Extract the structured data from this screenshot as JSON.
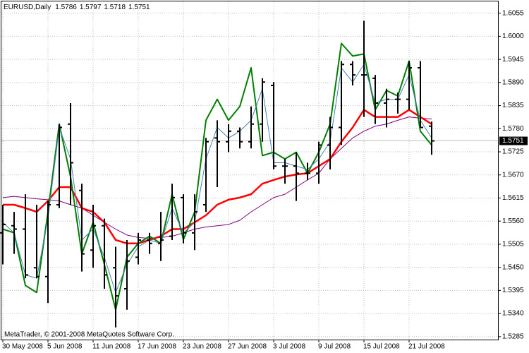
{
  "chart_data": {
    "type": "ohlc",
    "title": "EURUSD,Daily",
    "footer": "MetaTrader, © 2001-2008 MetaQuotes Software Corp.",
    "categories": [
      "30 May 2008",
      null,
      null,
      null,
      "5 Jun 2008",
      null,
      null,
      null,
      "11 Jun 2008",
      null,
      null,
      null,
      "17 Jun 2008",
      null,
      null,
      null,
      "23 Jun 2008",
      null,
      null,
      null,
      "27 Jun 2008",
      null,
      null,
      null,
      "3 Jul 2008",
      null,
      null,
      null,
      "9 Jul 2008",
      null,
      null,
      null,
      "15 Jul 2008",
      null,
      null,
      null,
      "21 Jul 2008",
      null,
      null
    ],
    "open": [
      1.5532,
      1.5549,
      1.5541,
      1.5449,
      1.5428,
      1.5599,
      1.5791,
      1.5633,
      1.5491,
      1.5549,
      1.5449,
      1.5399,
      1.5474,
      1.5515,
      1.5507,
      1.5524,
      1.5616,
      1.5532,
      1.5599,
      1.5758,
      1.5749,
      1.5774,
      1.5749,
      1.5791,
      1.5883,
      1.5691,
      1.5691,
      1.5674,
      1.5674,
      1.5741,
      1.5783,
      1.5933,
      1.5908,
      1.59,
      1.5841,
      1.585,
      1.585,
      1.5925,
      1.5786
    ],
    "high": [
      1.5599,
      1.5582,
      1.5624,
      1.5599,
      1.5608,
      1.5791,
      1.5841,
      1.5649,
      1.5599,
      1.5566,
      1.5499,
      1.5515,
      1.5532,
      1.5532,
      1.5582,
      1.5649,
      1.5624,
      1.5624,
      1.5758,
      1.58,
      1.5791,
      1.5783,
      1.5833,
      1.59,
      1.5891,
      1.5708,
      1.5724,
      1.5699,
      1.5749,
      1.5808,
      1.5941,
      1.5941,
      1.6037,
      1.5908,
      1.5875,
      1.5866,
      1.5941,
      1.5941,
      1.5797
    ],
    "low": [
      1.5457,
      1.5482,
      1.5424,
      1.5424,
      1.5365,
      1.5591,
      1.5599,
      1.544,
      1.5449,
      1.5399,
      1.5307,
      1.5349,
      1.5457,
      1.5482,
      1.5465,
      1.5515,
      1.5507,
      1.5491,
      1.5582,
      1.5641,
      1.5724,
      1.5733,
      1.5733,
      1.5749,
      1.5683,
      1.5649,
      1.5608,
      1.5658,
      1.5649,
      1.5683,
      1.5741,
      1.5883,
      1.5808,
      1.5791,
      1.5783,
      1.5816,
      1.5825,
      1.5783,
      1.5718
    ],
    "close": [
      1.5552,
      1.5541,
      1.5432,
      1.5428,
      1.5599,
      1.5783,
      1.5699,
      1.5482,
      1.5549,
      1.5432,
      1.5382,
      1.5465,
      1.5515,
      1.5507,
      1.5515,
      1.5616,
      1.5532,
      1.5582,
      1.5749,
      1.5749,
      1.5774,
      1.5749,
      1.5791,
      1.5891,
      1.5691,
      1.5691,
      1.5674,
      1.5674,
      1.5741,
      1.5783,
      1.5933,
      1.5908,
      1.5908,
      1.5841,
      1.585,
      1.585,
      1.5925,
      1.5783,
      1.5751
    ],
    "color": "#000000",
    "lines": [
      {
        "color": "#800080",
        "width": 1,
        "values": [
          1.5616,
          1.5619,
          1.5616,
          1.5613,
          1.5611,
          1.5608,
          1.5599,
          1.5591,
          1.5574,
          1.5557,
          1.5541,
          1.5527,
          1.5521,
          1.5519,
          1.5521,
          1.5524,
          1.5532,
          1.5541,
          1.5546,
          1.5549,
          1.5552,
          1.5562,
          1.5582,
          1.5599,
          1.5616,
          1.5624,
          1.5641,
          1.5658,
          1.5674,
          1.5708,
          1.5733,
          1.5758,
          1.5774,
          1.5786,
          1.5791,
          1.58,
          1.5808,
          1.5805,
          1.5803
        ]
      },
      {
        "color": "#ff0000",
        "width": 2.5,
        "values": [
          1.5599,
          1.5599,
          1.5591,
          1.5582,
          1.5608,
          1.5641,
          1.5641,
          1.5591,
          1.5582,
          1.5557,
          1.5515,
          1.5507,
          1.5507,
          1.5515,
          1.5524,
          1.5541,
          1.5541,
          1.5557,
          1.5574,
          1.5599,
          1.5611,
          1.5616,
          1.5624,
          1.5649,
          1.5658,
          1.5666,
          1.5671,
          1.5674,
          1.5691,
          1.5708,
          1.5749,
          1.5783,
          1.5825,
          1.5808,
          1.5808,
          1.5808,
          1.5825,
          1.5808,
          1.5791
        ]
      },
      {
        "color": "#008000",
        "width": 2,
        "values": [
          1.5541,
          1.5532,
          1.5407,
          1.539,
          1.5582,
          1.5791,
          1.5666,
          1.5482,
          1.5557,
          1.5457,
          1.5349,
          1.5474,
          1.5507,
          1.5524,
          1.5507,
          1.5624,
          1.5516,
          1.5582,
          1.58,
          1.585,
          1.58,
          1.5833,
          1.5925,
          1.5716,
          1.5724,
          1.5708,
          1.5724,
          1.5674,
          1.5724,
          1.5791,
          1.5983,
          1.5953,
          1.5958,
          1.5825,
          1.5871,
          1.5858,
          1.5941,
          1.5774,
          1.5741
        ]
      },
      {
        "color": "#4682b4",
        "width": 1,
        "values": [
          1.5557,
          1.5532,
          1.5432,
          1.5424,
          1.5566,
          1.5783,
          1.5708,
          1.5515,
          1.5541,
          1.5474,
          1.539,
          1.5457,
          1.5499,
          1.5515,
          1.5507,
          1.5591,
          1.5532,
          1.5557,
          1.5708,
          1.5783,
          1.5758,
          1.5774,
          1.58,
          1.5875,
          1.5699,
          1.5699,
          1.5691,
          1.5683,
          1.5708,
          1.5749,
          1.5925,
          1.5891,
          1.5933,
          1.5841,
          1.585,
          1.585,
          1.5908,
          1.58,
          1.5758
        ]
      }
    ],
    "ylim": [
      1.5278,
      1.6083
    ],
    "yticks": [
      1.5285,
      {
        "value": 1.534,
        "label": "1.5340"
      },
      1.5395,
      {
        "value": 1.545,
        "label": "1.5450"
      },
      1.5505,
      {
        "value": 1.556,
        "label": "1.5560"
      },
      1.5615,
      {
        "value": 1.567,
        "label": "1.5670"
      },
      1.5725,
      {
        "value": 1.578,
        "label": "1.5780"
      },
      1.5835,
      {
        "value": 1.589,
        "label": "1.5890"
      },
      1.5945,
      {
        "value": 1.6,
        "label": "1.6000"
      },
      1.6055
    ],
    "grid": true
  }
}
